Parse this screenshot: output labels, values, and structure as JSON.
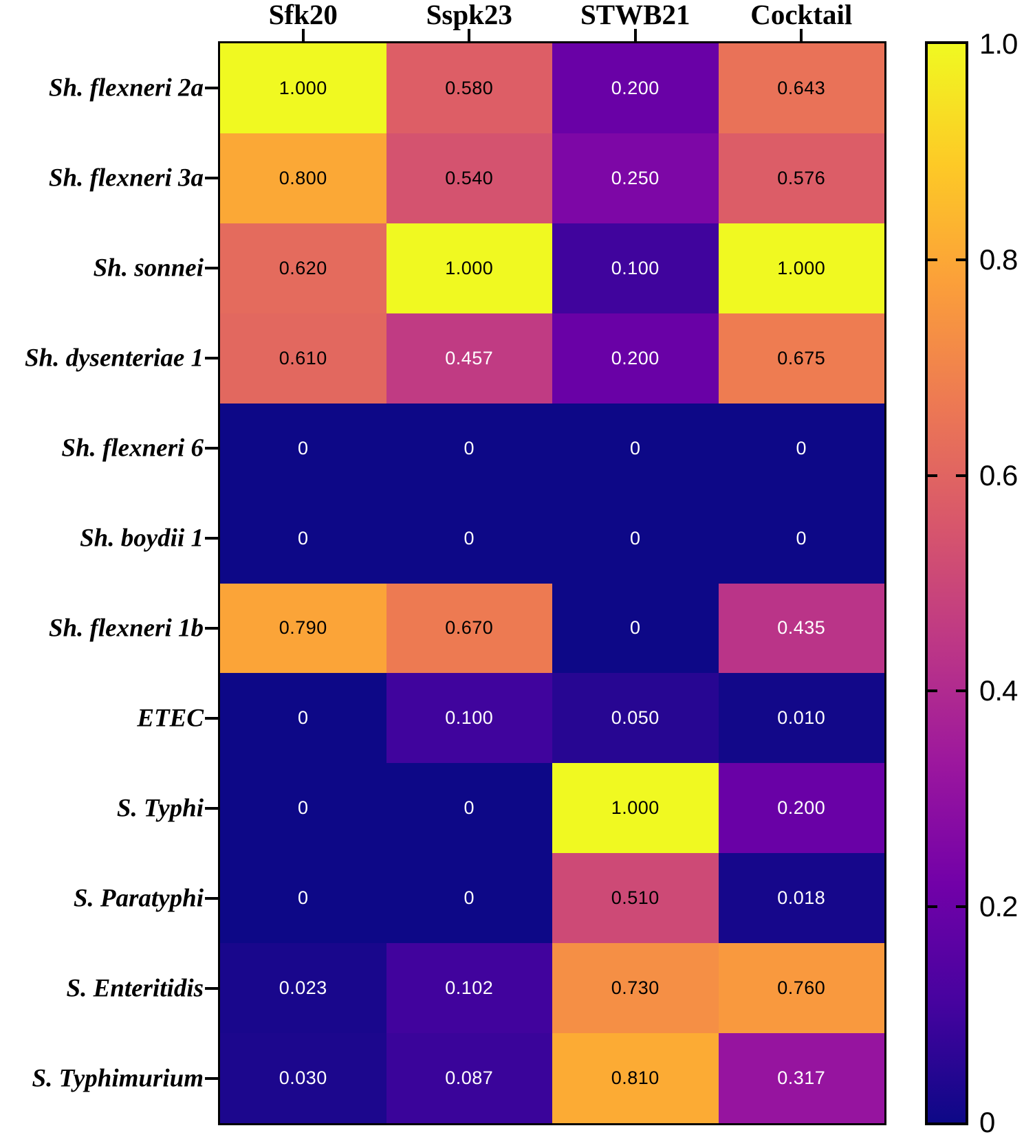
{
  "figure": {
    "background_color": "#ffffff",
    "border_color": "#000000"
  },
  "chart_data": {
    "type": "heatmap",
    "title": "",
    "xlabel": "",
    "ylabel": "",
    "columns": [
      "Sfk20",
      "Sspk23",
      "STWB21",
      "Cocktail"
    ],
    "rows": [
      "Sh. flexneri 2a",
      "Sh. flexneri 3a",
      "Sh. sonnei",
      "Sh. dysenteriae 1",
      "Sh. flexneri 6",
      "Sh. boydii 1",
      "Sh. flexneri 1b",
      "ETEC",
      "S. Typhi",
      "S. Paratyphi",
      "S. Enteritidis",
      "S. Typhimurium"
    ],
    "values": [
      [
        1.0,
        0.58,
        0.2,
        0.643
      ],
      [
        0.8,
        0.54,
        0.25,
        0.576
      ],
      [
        0.62,
        1.0,
        0.1,
        1.0
      ],
      [
        0.61,
        0.457,
        0.2,
        0.675
      ],
      [
        0,
        0,
        0,
        0
      ],
      [
        0,
        0,
        0,
        0
      ],
      [
        0.79,
        0.67,
        0,
        0.435
      ],
      [
        0,
        0.1,
        0.05,
        0.01
      ],
      [
        0,
        0,
        1.0,
        0.2
      ],
      [
        0,
        0,
        0.51,
        0.018
      ],
      [
        0.023,
        0.102,
        0.73,
        0.76
      ],
      [
        0.03,
        0.087,
        0.81,
        0.317
      ]
    ],
    "cell_labels": [
      [
        "1.000",
        "0.580",
        "0.200",
        "0.643"
      ],
      [
        "0.800",
        "0.540",
        "0.250",
        "0.576"
      ],
      [
        "0.620",
        "1.000",
        "0.100",
        "1.000"
      ],
      [
        "0.610",
        "0.457",
        "0.200",
        "0.675"
      ],
      [
        "0",
        "0",
        "0",
        "0"
      ],
      [
        "0",
        "0",
        "0",
        "0"
      ],
      [
        "0.790",
        "0.670",
        "0",
        "0.435"
      ],
      [
        "0",
        "0.100",
        "0.050",
        "0.010"
      ],
      [
        "0",
        "0",
        "1.000",
        "0.200"
      ],
      [
        "0",
        "0",
        "0.510",
        "0.018"
      ],
      [
        "0.023",
        "0.102",
        "0.730",
        "0.760"
      ],
      [
        "0.030",
        "0.087",
        "0.810",
        "0.317"
      ]
    ],
    "value_range": [
      0,
      1
    ],
    "cell_text_colors": {
      "high": "#000000",
      "low": "#ffffff",
      "threshold": 0.5
    },
    "colorbar": {
      "position": "right",
      "min": 0,
      "max": 1,
      "tick_values": [
        1.0,
        0.8,
        0.6,
        0.4,
        0.2,
        0
      ],
      "tick_labels": [
        "1.0",
        "0.8",
        "0.6",
        "0.4",
        "0.2",
        "0"
      ],
      "colormap": "plasma",
      "stops": [
        "#0d0887",
        "#46039f",
        "#7201a8",
        "#9c179e",
        "#bd3786",
        "#d8576b",
        "#ed7953",
        "#fb9f3a",
        "#fdca26",
        "#f0f921"
      ]
    },
    "grid": false,
    "legend": false
  }
}
